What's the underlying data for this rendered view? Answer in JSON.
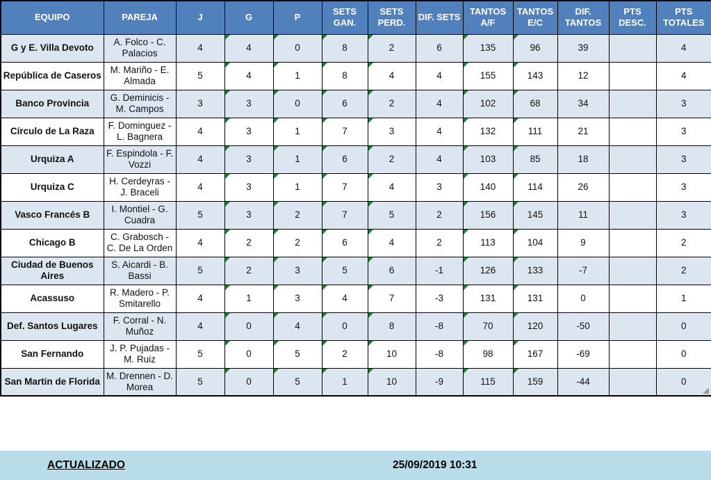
{
  "table": {
    "columns": [
      {
        "key": "equipo",
        "label": "EQUIPO",
        "marker": false
      },
      {
        "key": "pareja",
        "label": "PAREJA",
        "marker": false
      },
      {
        "key": "j",
        "label": "J",
        "marker": false
      },
      {
        "key": "g",
        "label": "G",
        "marker": true
      },
      {
        "key": "p",
        "label": "P",
        "marker": true
      },
      {
        "key": "sets_gan",
        "label": "SETS GAN.",
        "marker": true
      },
      {
        "key": "sets_perd",
        "label": "SETS PERD.",
        "marker": true
      },
      {
        "key": "dif_sets",
        "label": "DIF. SETS",
        "marker": false
      },
      {
        "key": "tantos_af",
        "label": "TANTOS A/F",
        "marker": true
      },
      {
        "key": "tantos_ec",
        "label": "TANTOS E/C",
        "marker": true
      },
      {
        "key": "dif_tantos",
        "label": "DIF. TANTOS",
        "marker": false
      },
      {
        "key": "pts_desc",
        "label": "PTS DESC.",
        "marker": false
      },
      {
        "key": "pts_totales",
        "label": "PTS TOTALES",
        "marker": false
      }
    ],
    "rows": [
      {
        "equipo": "G y E. Villa Devoto",
        "pareja": "A. Folco - C. Palacios",
        "j": "4",
        "g": "4",
        "p": "0",
        "sets_gan": "8",
        "sets_perd": "2",
        "dif_sets": "6",
        "tantos_af": "135",
        "tantos_ec": "96",
        "dif_tantos": "39",
        "pts_desc": "",
        "pts_totales": "4"
      },
      {
        "equipo": "República de Caseros",
        "pareja": "M. Mariño - E. Almada",
        "j": "5",
        "g": "4",
        "p": "1",
        "sets_gan": "8",
        "sets_perd": "4",
        "dif_sets": "4",
        "tantos_af": "155",
        "tantos_ec": "143",
        "dif_tantos": "12",
        "pts_desc": "",
        "pts_totales": "4"
      },
      {
        "equipo": "Banco Provincia",
        "pareja": "G. Deminicis - M. Campos",
        "j": "3",
        "g": "3",
        "p": "0",
        "sets_gan": "6",
        "sets_perd": "2",
        "dif_sets": "4",
        "tantos_af": "102",
        "tantos_ec": "68",
        "dif_tantos": "34",
        "pts_desc": "",
        "pts_totales": "3"
      },
      {
        "equipo": "Círculo de La Raza",
        "pareja": "F. Dominguez - L. Bagnera",
        "j": "4",
        "g": "3",
        "p": "1",
        "sets_gan": "7",
        "sets_perd": "3",
        "dif_sets": "4",
        "tantos_af": "132",
        "tantos_ec": "111",
        "dif_tantos": "21",
        "pts_desc": "",
        "pts_totales": "3"
      },
      {
        "equipo": "Urquiza A",
        "pareja": "F. Espindola - F. Vozzi",
        "j": "4",
        "g": "3",
        "p": "1",
        "sets_gan": "6",
        "sets_perd": "2",
        "dif_sets": "4",
        "tantos_af": "103",
        "tantos_ec": "85",
        "dif_tantos": "18",
        "pts_desc": "",
        "pts_totales": "3"
      },
      {
        "equipo": "Urquiza C",
        "pareja": "H. Cerdeyras - J. Braceli",
        "j": "4",
        "g": "3",
        "p": "1",
        "sets_gan": "7",
        "sets_perd": "4",
        "dif_sets": "3",
        "tantos_af": "140",
        "tantos_ec": "114",
        "dif_tantos": "26",
        "pts_desc": "",
        "pts_totales": "3"
      },
      {
        "equipo": "Vasco Francés B",
        "pareja": "I. Montiel - G. Cuadra",
        "j": "5",
        "g": "3",
        "p": "2",
        "sets_gan": "7",
        "sets_perd": "5",
        "dif_sets": "2",
        "tantos_af": "156",
        "tantos_ec": "145",
        "dif_tantos": "11",
        "pts_desc": "",
        "pts_totales": "3"
      },
      {
        "equipo": "Chicago B",
        "pareja": "C. Grabosch - C. De La Orden",
        "j": "4",
        "g": "2",
        "p": "2",
        "sets_gan": "6",
        "sets_perd": "4",
        "dif_sets": "2",
        "tantos_af": "113",
        "tantos_ec": "104",
        "dif_tantos": "9",
        "pts_desc": "",
        "pts_totales": "2"
      },
      {
        "equipo": "Ciudad de Buenos Aires",
        "pareja": "S. Aicardi - B. Bassi",
        "j": "5",
        "g": "2",
        "p": "3",
        "sets_gan": "5",
        "sets_perd": "6",
        "dif_sets": "-1",
        "tantos_af": "126",
        "tantos_ec": "133",
        "dif_tantos": "-7",
        "pts_desc": "",
        "pts_totales": "2"
      },
      {
        "equipo": "Acassuso",
        "pareja": "R. Madero - P. Smitarello",
        "j": "4",
        "g": "1",
        "p": "3",
        "sets_gan": "4",
        "sets_perd": "7",
        "dif_sets": "-3",
        "tantos_af": "131",
        "tantos_ec": "131",
        "dif_tantos": "0",
        "pts_desc": "",
        "pts_totales": "1"
      },
      {
        "equipo": "Def. Santos Lugares",
        "pareja": "F. Corral - N. Muñoz",
        "j": "4",
        "g": "0",
        "p": "4",
        "sets_gan": "0",
        "sets_perd": "8",
        "dif_sets": "-8",
        "tantos_af": "70",
        "tantos_ec": "120",
        "dif_tantos": "-50",
        "pts_desc": "",
        "pts_totales": "0"
      },
      {
        "equipo": "San Fernando",
        "pareja": "J. P. Pujadas - M. Ruiz",
        "j": "5",
        "g": "0",
        "p": "5",
        "sets_gan": "2",
        "sets_perd": "10",
        "dif_sets": "-8",
        "tantos_af": "98",
        "tantos_ec": "167",
        "dif_tantos": "-69",
        "pts_desc": "",
        "pts_totales": "0"
      },
      {
        "equipo": "San Martin de Florida",
        "pareja": "M. Drennen - D. Morea",
        "j": "5",
        "g": "0",
        "p": "5",
        "sets_gan": "1",
        "sets_perd": "10",
        "dif_sets": "-9",
        "tantos_af": "115",
        "tantos_ec": "159",
        "dif_tantos": "-44",
        "pts_desc": "",
        "pts_totales": "0"
      }
    ]
  },
  "footer": {
    "label": "ACTUALIZADO",
    "timestamp": "25/09/2019 10:31"
  },
  "colors": {
    "header_bg": "#5081BD",
    "band_bg": "#DCE6F1",
    "footer_bg": "#B9DCE9",
    "marker_green": "#1E7B34",
    "grid": "#000000"
  }
}
